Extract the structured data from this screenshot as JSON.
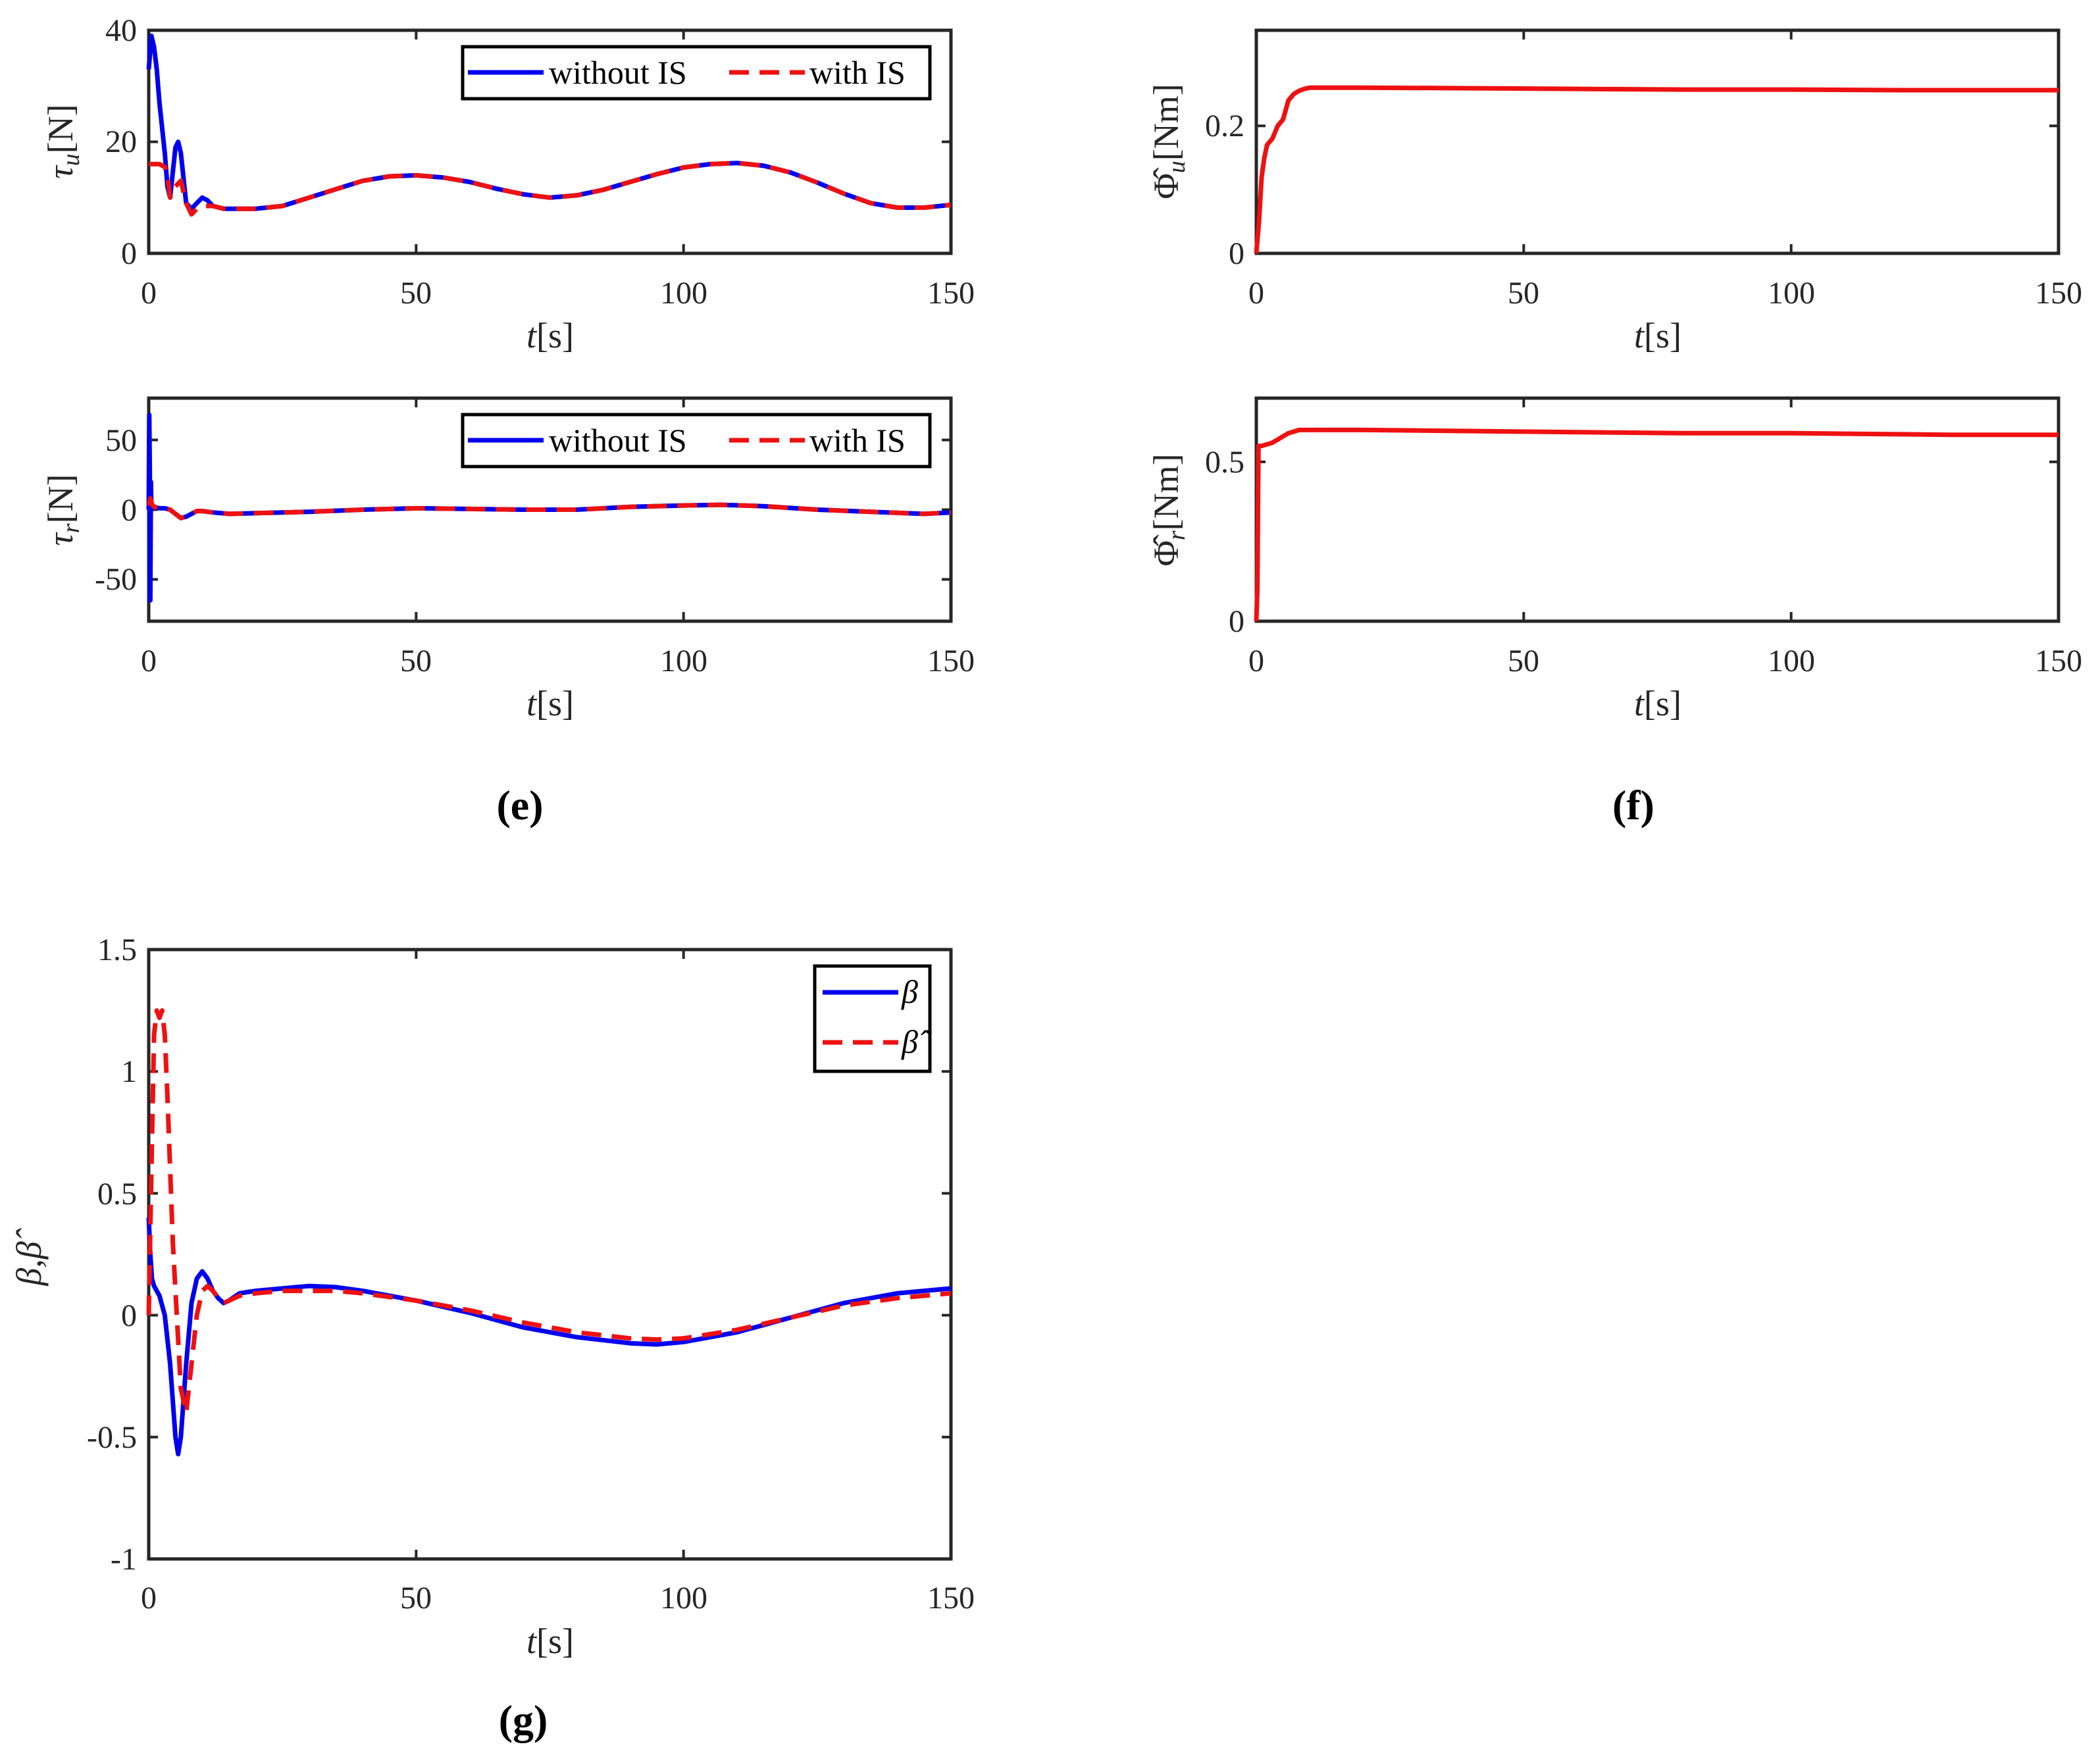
{
  "colors": {
    "blue": "#0000ee",
    "red": "#ee1111",
    "axis": "#262626"
  },
  "chart_data": [
    {
      "id": "e-top",
      "type": "line",
      "xlabel": "t",
      "xlabel_unit": "[s]",
      "ylabel": "τ",
      "ylabel_sub": "u",
      "ylabel_unit": "[N]",
      "xlim": [
        0,
        150
      ],
      "ylim": [
        0,
        40
      ],
      "xticks": [
        0,
        50,
        100,
        150
      ],
      "yticks": [
        0,
        20,
        40
      ],
      "xticklabels": [
        "0",
        "50",
        "100",
        "150"
      ],
      "yticklabels": [
        "0",
        "20",
        "40"
      ],
      "legend": {
        "position": "top-right",
        "layout": "horizontal"
      },
      "series": [
        {
          "name": "without IS",
          "color": "#0000ee",
          "dash": "solid",
          "x": [
            0,
            0.5,
            1,
            1.5,
            2,
            3,
            3.5,
            4,
            5,
            5.5,
            6,
            7,
            8,
            9,
            10,
            11,
            12,
            14,
            16,
            20,
            25,
            30,
            35,
            40,
            45,
            50,
            55,
            60,
            65,
            70,
            75,
            80,
            85,
            90,
            95,
            100,
            105,
            110,
            115,
            120,
            125,
            130,
            135,
            140,
            145,
            150
          ],
          "y": [
            33,
            39,
            37,
            33,
            27,
            18,
            12,
            10,
            19,
            20,
            18,
            9,
            8,
            9,
            10,
            9.5,
            8.5,
            8,
            8,
            8,
            8.5,
            10,
            11.5,
            13,
            13.8,
            14,
            13.6,
            12.8,
            11.6,
            10.6,
            10,
            10.4,
            11.4,
            12.8,
            14.2,
            15.4,
            16,
            16.2,
            15.7,
            14.5,
            12.7,
            10.7,
            9,
            8.2,
            8.2,
            8.7
          ]
        },
        {
          "name": "with IS",
          "color": "#ee1111",
          "dash": "dashed",
          "x": [
            0,
            1,
            2,
            3,
            3.5,
            4,
            5,
            6,
            7,
            8,
            9,
            10,
            12,
            14,
            16,
            20,
            25,
            30,
            35,
            40,
            45,
            50,
            55,
            60,
            65,
            70,
            75,
            80,
            85,
            90,
            95,
            100,
            105,
            110,
            115,
            120,
            125,
            130,
            135,
            140,
            145,
            150
          ],
          "y": [
            16,
            16,
            16,
            15.5,
            14,
            10,
            12,
            13,
            9,
            7,
            8,
            8.5,
            8.5,
            8,
            8,
            8,
            8.5,
            10,
            11.5,
            13,
            13.8,
            14,
            13.6,
            12.8,
            11.6,
            10.6,
            10,
            10.4,
            11.4,
            12.8,
            14.2,
            15.4,
            16,
            16.2,
            15.7,
            14.5,
            12.7,
            10.7,
            9,
            8.2,
            8.2,
            8.7
          ]
        }
      ]
    },
    {
      "id": "e-bottom",
      "type": "line",
      "xlabel": "t",
      "xlabel_unit": "[s]",
      "ylabel": "τ",
      "ylabel_sub": "r",
      "ylabel_unit": "[N]",
      "xlim": [
        0,
        150
      ],
      "ylim": [
        -80,
        80
      ],
      "xticks": [
        0,
        50,
        100,
        150
      ],
      "yticks": [
        -50,
        0,
        50
      ],
      "xticklabels": [
        "0",
        "50",
        "100",
        "150"
      ],
      "yticklabels": [
        "-50",
        "0",
        "50"
      ],
      "legend": {
        "position": "top-right",
        "layout": "horizontal"
      },
      "series": [
        {
          "name": "without IS",
          "color": "#0000ee",
          "dash": "solid",
          "x": [
            0,
            0.1,
            0.2,
            0.3,
            0.4,
            0.5,
            1,
            2,
            3,
            4,
            5,
            6,
            7,
            8,
            9,
            10,
            12,
            15,
            20,
            30,
            40,
            50,
            60,
            70,
            80,
            90,
            100,
            107,
            115,
            125,
            135,
            145,
            150
          ],
          "y": [
            0,
            68,
            30,
            -65,
            20,
            0,
            2,
            1,
            1,
            0,
            -3,
            -6,
            -5,
            -3,
            -1,
            -1,
            -2,
            -3,
            -2.5,
            -1.5,
            0,
            1,
            0.5,
            0,
            0,
            2,
            3,
            3.5,
            2.5,
            0,
            -1.5,
            -3,
            -2
          ]
        },
        {
          "name": "with IS",
          "color": "#ee1111",
          "dash": "dashed",
          "x": [
            0,
            0.3,
            0.6,
            1,
            2,
            3,
            4,
            5,
            6,
            7,
            8,
            9,
            10,
            12,
            15,
            20,
            30,
            40,
            50,
            60,
            70,
            80,
            90,
            100,
            107,
            115,
            125,
            135,
            145,
            150
          ],
          "y": [
            3,
            8,
            4,
            2,
            1,
            1,
            0,
            -3,
            -6,
            -5,
            -3,
            -1,
            -1,
            -2,
            -3,
            -2.5,
            -1.5,
            0,
            1,
            0.5,
            0,
            0,
            2,
            3,
            3.5,
            2.5,
            0,
            -1.5,
            -3,
            -2
          ]
        }
      ]
    },
    {
      "id": "f-top",
      "type": "line",
      "xlabel": "t",
      "xlabel_unit": "[s]",
      "ylabel": "Φ̂",
      "ylabel_sub": "u",
      "ylabel_unit": "[Nm]",
      "xlim": [
        0,
        150
      ],
      "ylim": [
        0,
        0.35
      ],
      "xticks": [
        0,
        50,
        100,
        150
      ],
      "yticks": [
        0,
        0.2
      ],
      "xticklabels": [
        "0",
        "50",
        "100",
        "150"
      ],
      "yticklabels": [
        "0",
        "0.2"
      ],
      "series": [
        {
          "name": "Φ̂u",
          "color": "#ee1111",
          "dash": "solid",
          "x": [
            0,
            0.5,
            1,
            1.5,
            2,
            3,
            4,
            5,
            6,
            7,
            8,
            9,
            10,
            20,
            40,
            60,
            80,
            100,
            120,
            150
          ],
          "y": [
            0,
            0.05,
            0.12,
            0.15,
            0.17,
            0.18,
            0.2,
            0.21,
            0.24,
            0.25,
            0.255,
            0.258,
            0.26,
            0.26,
            0.259,
            0.258,
            0.257,
            0.257,
            0.256,
            0.256
          ]
        }
      ]
    },
    {
      "id": "f-bottom",
      "type": "line",
      "xlabel": "t",
      "xlabel_unit": "[s]",
      "ylabel": "Φ̂",
      "ylabel_sub": "r",
      "ylabel_unit": "[Nm]",
      "xlim": [
        0,
        150
      ],
      "ylim": [
        0,
        0.7
      ],
      "xticks": [
        0,
        50,
        100,
        150
      ],
      "yticks": [
        0,
        0.5
      ],
      "xticklabels": [
        "0",
        "50",
        "100",
        "150"
      ],
      "yticklabels": [
        "0",
        "0.5"
      ],
      "series": [
        {
          "name": "Φ̂r",
          "color": "#ee1111",
          "dash": "solid",
          "x": [
            0,
            0.2,
            0.4,
            1,
            3,
            4,
            5,
            6,
            7,
            8,
            20,
            50,
            80,
            100,
            130,
            150
          ],
          "y": [
            0,
            0.1,
            0.55,
            0.55,
            0.56,
            0.57,
            0.58,
            0.59,
            0.595,
            0.6,
            0.6,
            0.595,
            0.59,
            0.59,
            0.585,
            0.585
          ]
        }
      ]
    },
    {
      "id": "g",
      "type": "line",
      "xlabel": "t",
      "xlabel_unit": "[s]",
      "ylabel": "β,β̂",
      "xlim": [
        0,
        150
      ],
      "ylim": [
        -1,
        1.5
      ],
      "xticks": [
        0,
        50,
        100,
        150
      ],
      "yticks": [
        -1,
        -0.5,
        0,
        0.5,
        1,
        1.5
      ],
      "xticklabels": [
        "0",
        "50",
        "100",
        "150"
      ],
      "yticklabels": [
        "-1",
        "-0.5",
        "0",
        "0.5",
        "1",
        "1.5"
      ],
      "legend": {
        "position": "top-right",
        "layout": "vertical"
      },
      "series": [
        {
          "name": "β",
          "color": "#0000ee",
          "dash": "solid",
          "x": [
            0,
            0.3,
            0.6,
            1,
            2,
            3,
            4,
            5,
            5.5,
            6,
            7,
            8,
            9,
            10,
            11,
            12,
            13,
            14,
            15,
            17,
            20,
            25,
            30,
            35,
            40,
            50,
            60,
            70,
            80,
            90,
            95,
            100,
            110,
            120,
            130,
            140,
            150
          ],
          "y": [
            0.4,
            0.25,
            0.15,
            0.12,
            0.08,
            0,
            -0.2,
            -0.5,
            -0.57,
            -0.5,
            -0.2,
            0.05,
            0.15,
            0.18,
            0.15,
            0.1,
            0.07,
            0.05,
            0.06,
            0.09,
            0.1,
            0.11,
            0.12,
            0.115,
            0.1,
            0.06,
            0.01,
            -0.05,
            -0.09,
            -0.115,
            -0.12,
            -0.11,
            -0.07,
            -0.01,
            0.05,
            0.09,
            0.11
          ]
        },
        {
          "name": "β̂",
          "color": "#ee1111",
          "dash": "dashed",
          "x": [
            0,
            0.5,
            1,
            1.5,
            2,
            2.5,
            3,
            3.5,
            4,
            4.5,
            5,
            6,
            7,
            8,
            9,
            10,
            11,
            12,
            13,
            14,
            15,
            17,
            20,
            25,
            30,
            35,
            40,
            50,
            60,
            70,
            80,
            90,
            95,
            100,
            110,
            120,
            130,
            140,
            150
          ],
          "y": [
            0,
            0.6,
            1.15,
            1.25,
            1.22,
            1.25,
            1.15,
            0.9,
            0.6,
            0.3,
            0.1,
            -0.3,
            -0.4,
            -0.2,
            0,
            0.1,
            0.12,
            0.1,
            0.07,
            0.05,
            0.06,
            0.08,
            0.09,
            0.1,
            0.1,
            0.1,
            0.09,
            0.06,
            0.02,
            -0.03,
            -0.07,
            -0.095,
            -0.1,
            -0.095,
            -0.06,
            -0.01,
            0.04,
            0.07,
            0.09
          ]
        }
      ]
    }
  ],
  "captions": {
    "e": "(e)",
    "f": "(f)",
    "g": "(g)"
  }
}
